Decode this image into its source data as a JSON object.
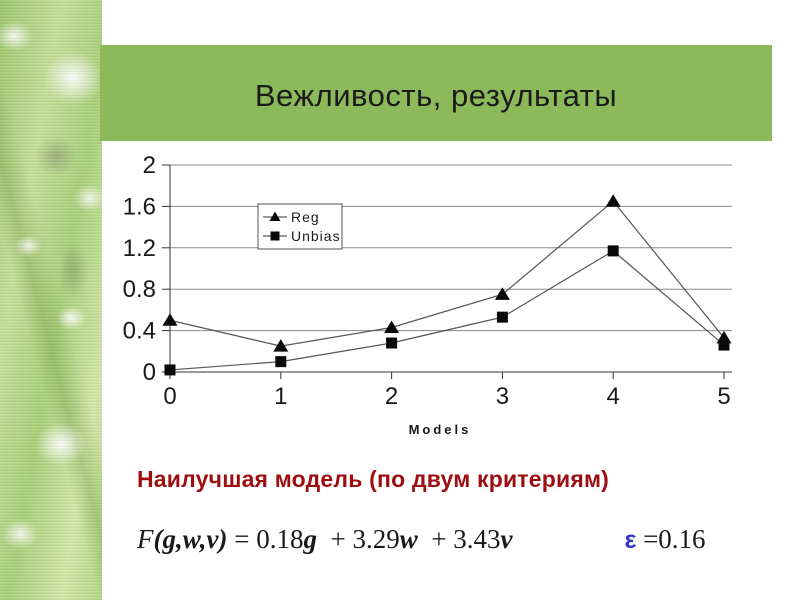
{
  "slide": {
    "title": "Вежливость, результаты"
  },
  "theme": {
    "header_green": "#8cba5b",
    "title_color": "#1b1b1b",
    "heading_red": "#9e0d10",
    "epsilon_blue": "#3333cc",
    "line_color": "#555555",
    "grid_color": "#888888",
    "marker_color": "#0a0a0a"
  },
  "chart_data": {
    "type": "line",
    "x": [
      0,
      1,
      2,
      3,
      4,
      5
    ],
    "x_ticks": [
      "0",
      "1",
      "2",
      "3",
      "4",
      "5"
    ],
    "y_ticks": [
      {
        "value": 0,
        "label": "0"
      },
      {
        "value": 0.4,
        "label": "0.4"
      },
      {
        "value": 0.8,
        "label": "0.8"
      },
      {
        "value": 1.2,
        "label": "1.2"
      },
      {
        "value": 1.6,
        "label": "1.6"
      },
      {
        "value": 2,
        "label": "2"
      }
    ],
    "ylim": [
      0,
      2
    ],
    "xlabel": "Models",
    "grid": true,
    "legend_position": "upper-left-inside",
    "series": [
      {
        "name": "Reg",
        "marker": "triangle",
        "values": [
          0.5,
          0.25,
          0.43,
          0.75,
          1.65,
          0.33
        ]
      },
      {
        "name": "Unbias",
        "marker": "square",
        "values": [
          0.02,
          0.1,
          0.28,
          0.53,
          1.17,
          0.26
        ]
      }
    ]
  },
  "findings": {
    "heading": "Наилучшая модель (по двум критериям)",
    "formula": {
      "parts": [
        {
          "text": "F",
          "style": "italic"
        },
        {
          "text": "(g,w,v)",
          "style": "bold-italic"
        },
        {
          "text": " = 0.18",
          "style": "roman"
        },
        {
          "text": "g",
          "style": "bold-italic"
        },
        {
          "text": "  + 3.29",
          "style": "roman"
        },
        {
          "text": "w",
          "style": "bold-italic"
        },
        {
          "text": "  + 3.43",
          "style": "roman"
        },
        {
          "text": "v",
          "style": "bold-italic"
        },
        {
          "text": "ε",
          "style": "epsilon"
        },
        {
          "text": " =0.16",
          "style": "roman"
        }
      ]
    }
  }
}
